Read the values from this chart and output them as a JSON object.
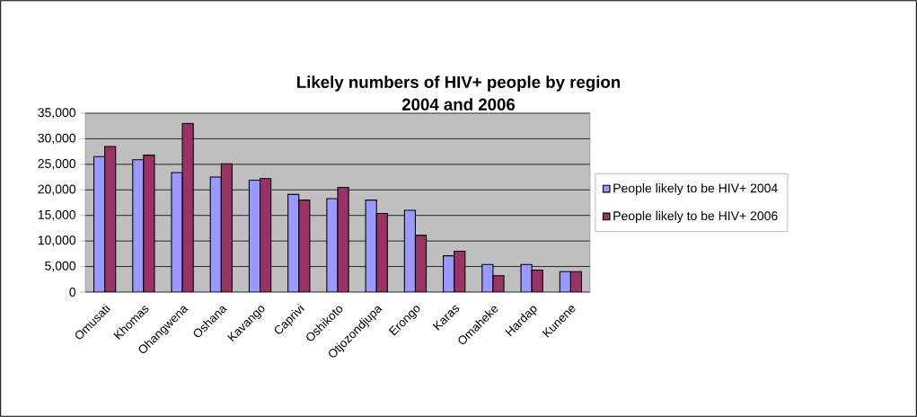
{
  "chart_data": {
    "type": "bar",
    "title": "Likely numbers of HIV+ people by region",
    "subtitle": "2004 and 2006",
    "categories": [
      "Omusati",
      "Khomas",
      "Ohangwena",
      "Oshana",
      "Kavango",
      "Caprivi",
      "Oshikoto",
      "Otjozondjupa",
      "Erongo",
      "Karas",
      "Omaheke",
      "Hardap",
      "Kunene"
    ],
    "series": [
      {
        "name": "People likely to be HIV+ 2004",
        "color": "#9999ff",
        "values": [
          26500,
          25900,
          23400,
          22500,
          21900,
          19100,
          18300,
          18000,
          16000,
          7100,
          5400,
          5400,
          4000
        ]
      },
      {
        "name": "People likely to be HIV+ 2006",
        "color": "#993366",
        "values": [
          28500,
          26800,
          33000,
          25100,
          22200,
          18000,
          20500,
          15400,
          11100,
          8000,
          3200,
          4300,
          4000
        ]
      }
    ],
    "ylim": [
      0,
      35000
    ],
    "yticks": [
      0,
      {
        "value": 5000,
        "label": "5,000"
      },
      {
        "value": 10000,
        "label": "10,000"
      },
      {
        "value": 15000,
        "label": "15,000"
      },
      {
        "value": 20000,
        "label": "20,000"
      },
      {
        "value": 25000,
        "label": "25,000"
      },
      {
        "value": 30000,
        "label": "30,000"
      },
      {
        "value": 35000,
        "label": "35,000"
      }
    ],
    "grid": "y",
    "legend": "right"
  }
}
